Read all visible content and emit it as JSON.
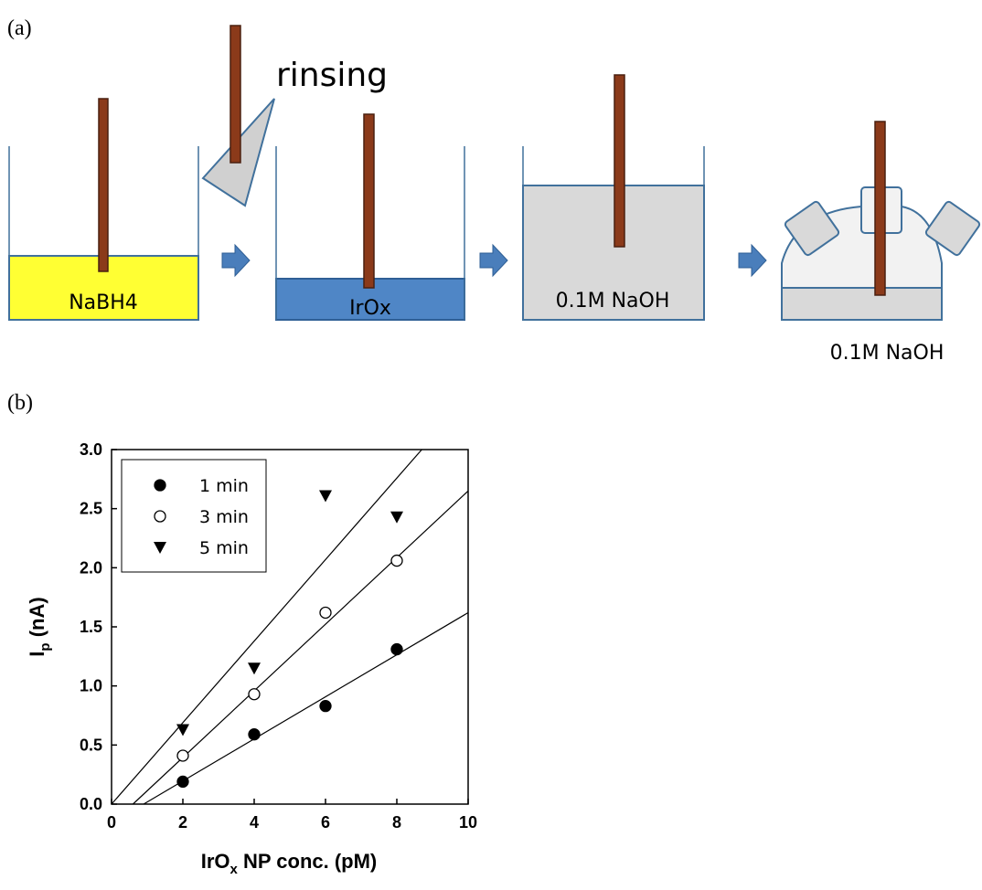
{
  "figure": {
    "panel_a_label": "(a)",
    "panel_b_label": "(b)",
    "diagram": {
      "rinsing": "rinsing",
      "steps": [
        "NaBH4",
        "IrOx",
        "0.1M NaOH",
        "0.1M NaOH"
      ]
    }
  },
  "chart_data": {
    "type": "scatter",
    "y_label": [
      "I",
      "p",
      " (nA)"
    ],
    "x_label": [
      "IrO",
      "x",
      " NP conc. (pM)"
    ],
    "x": [
      2,
      4,
      6,
      8
    ],
    "series": [
      {
        "name": "1 min",
        "color": "#000000",
        "marker": "filled-circle",
        "values": [
          0.19,
          0.59,
          0.83,
          1.31
        ],
        "fit": {
          "x": [
            0.9,
            10
          ],
          "values": [
            0,
            1.62
          ]
        }
      },
      {
        "name": "3 min",
        "color": "#000000",
        "marker": "open-circle",
        "values": [
          0.41,
          0.93,
          1.62,
          2.06
        ],
        "fit": {
          "x": [
            0.6,
            10
          ],
          "values": [
            0,
            2.65
          ]
        }
      },
      {
        "name": "5 min",
        "color": "#000000",
        "marker": "triangle-down",
        "values": [
          0.63,
          1.15,
          2.61,
          2.43
        ],
        "fit": {
          "x": [
            0,
            8.7
          ],
          "values": [
            0,
            3.0
          ]
        }
      }
    ],
    "xlim": [
      0,
      10
    ],
    "xticks": [
      0,
      2,
      4,
      6,
      8,
      10
    ],
    "ylim": [
      0,
      3
    ],
    "yticks": [
      {
        "value": 0,
        "label": "0.0"
      },
      0.5,
      {
        "value": 1,
        "label": "1.0"
      },
      1.5,
      {
        "value": 2,
        "label": "2.0"
      },
      2.5,
      {
        "value": 3,
        "label": "3.0"
      }
    ],
    "grid": false,
    "legend": "top-left"
  }
}
